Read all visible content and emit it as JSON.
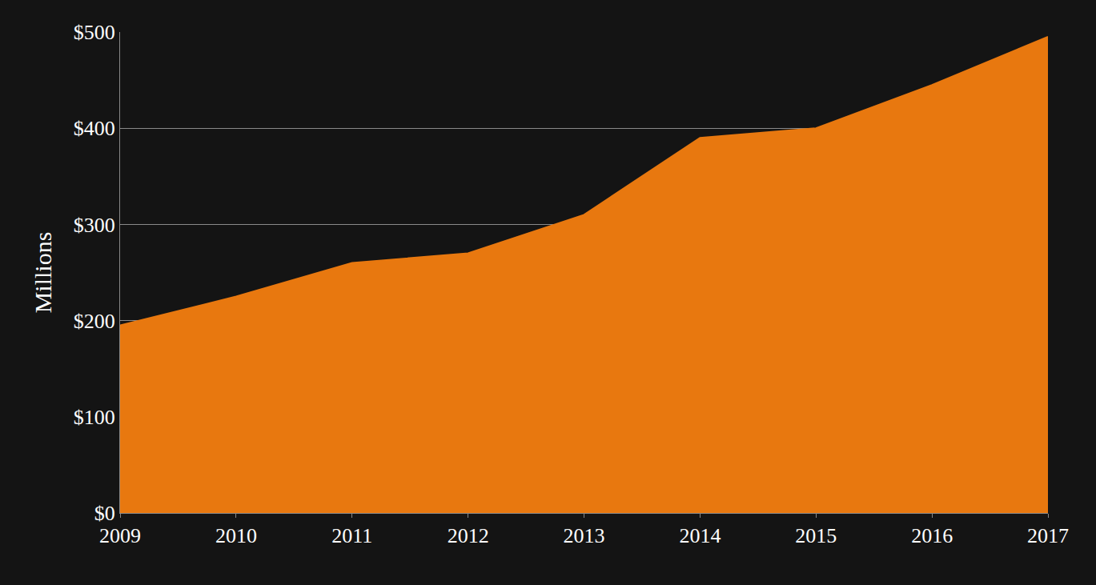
{
  "chart_data": {
    "type": "area",
    "y_label": "Millions",
    "categories": [
      "2009",
      "2010",
      "2011",
      "2012",
      "2013",
      "2014",
      "2015",
      "2016",
      "2017"
    ],
    "values": [
      195,
      225,
      260,
      270,
      310,
      390,
      400,
      445,
      495
    ],
    "color": "#e8780f",
    "ylim": [
      0,
      500
    ],
    "yticks": [
      {
        "value": 0,
        "label": "$0"
      },
      {
        "value": 100,
        "label": "$100"
      },
      {
        "value": 200,
        "label": "$200"
      },
      {
        "value": 300,
        "label": "$300"
      },
      {
        "value": 400,
        "label": "$400"
      },
      {
        "value": 500,
        "label": "$500"
      }
    ],
    "grid": true
  }
}
